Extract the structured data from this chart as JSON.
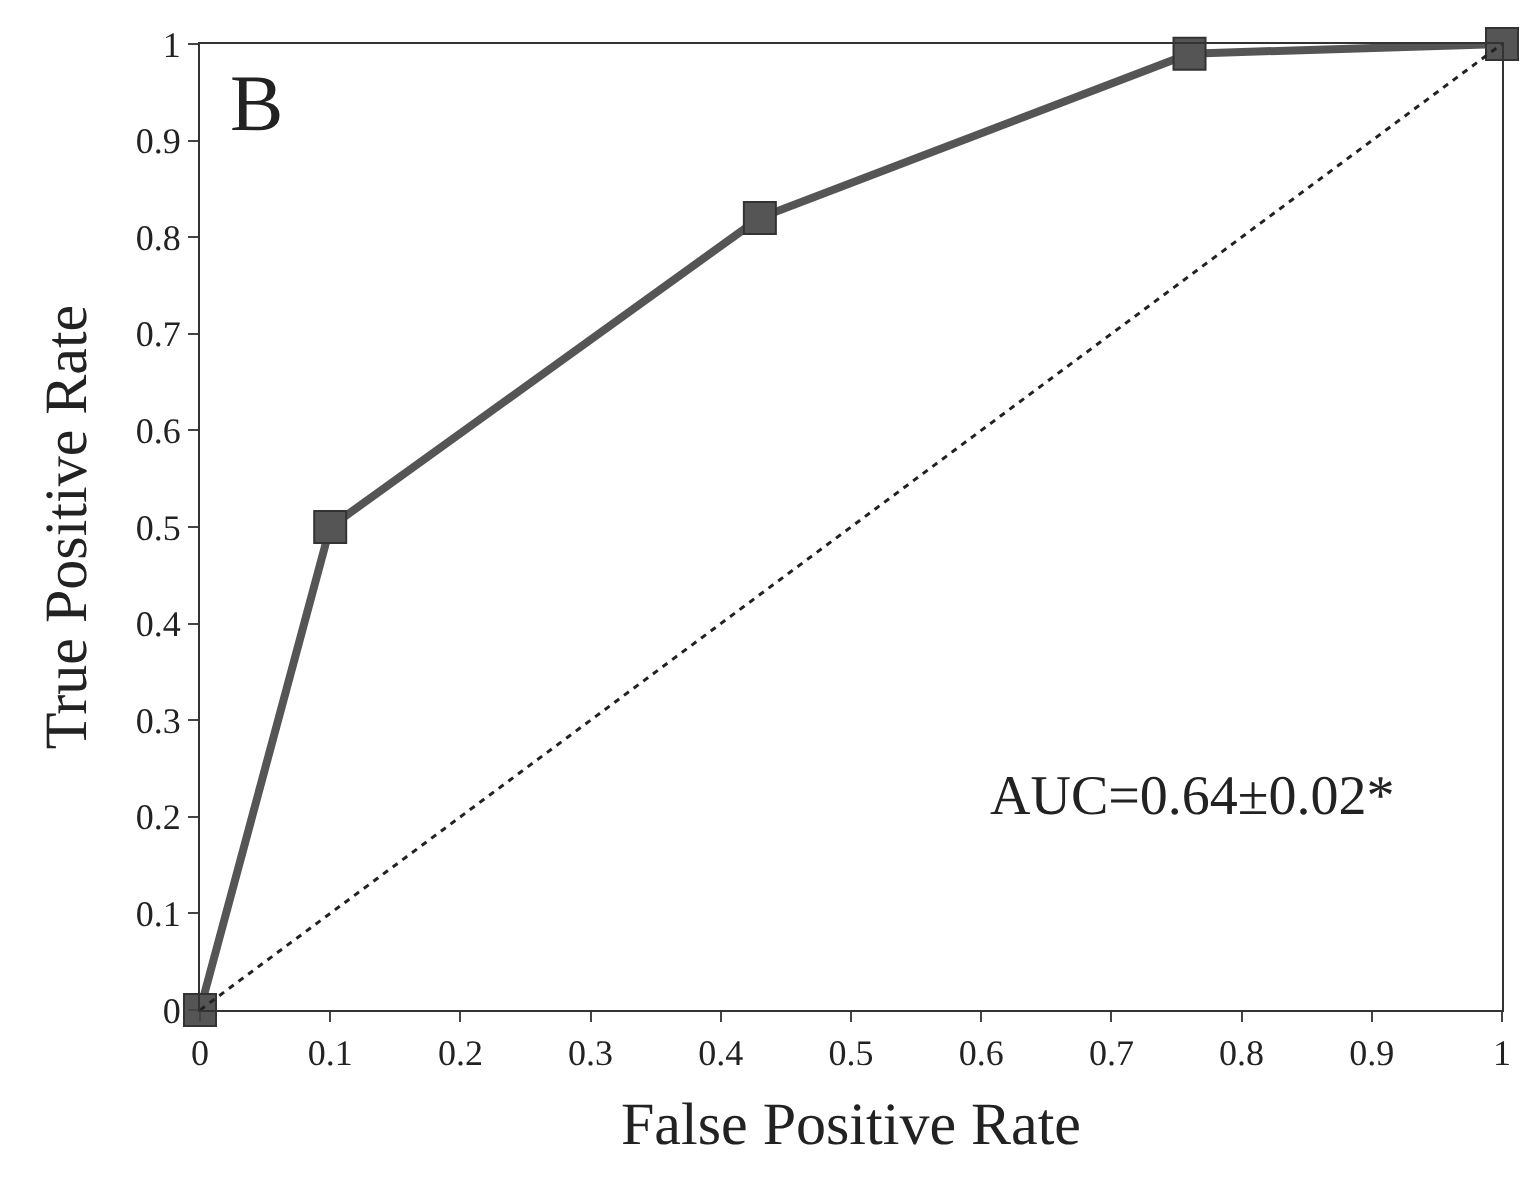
{
  "chart_data": {
    "type": "line",
    "xlabel": "False Positive Rate",
    "ylabel": "True Positive Rate",
    "xlim": [
      0,
      1
    ],
    "ylim": [
      0,
      1
    ],
    "xticks": [
      0,
      0.1,
      0.2,
      0.3,
      0.4,
      0.5,
      0.6,
      0.7,
      0.8,
      0.9,
      1
    ],
    "yticks": [
      0,
      0.1,
      0.2,
      0.3,
      0.4,
      0.5,
      0.6,
      0.7,
      0.8,
      0.9,
      1
    ],
    "grid": false,
    "series": [
      {
        "color": "#555555",
        "marker": "square",
        "line_style": "solid",
        "x": [
          0,
          0.1,
          0.43,
          0.76,
          1
        ],
        "values": [
          0,
          0.5,
          0.82,
          0.99,
          1
        ]
      },
      {
        "color": "#222222",
        "marker": "none",
        "line_style": "dotted",
        "x": [
          0,
          1
        ],
        "values": [
          0,
          1
        ]
      }
    ],
    "annotations": [
      "B",
      "AUC=0.64±0.02*"
    ]
  }
}
